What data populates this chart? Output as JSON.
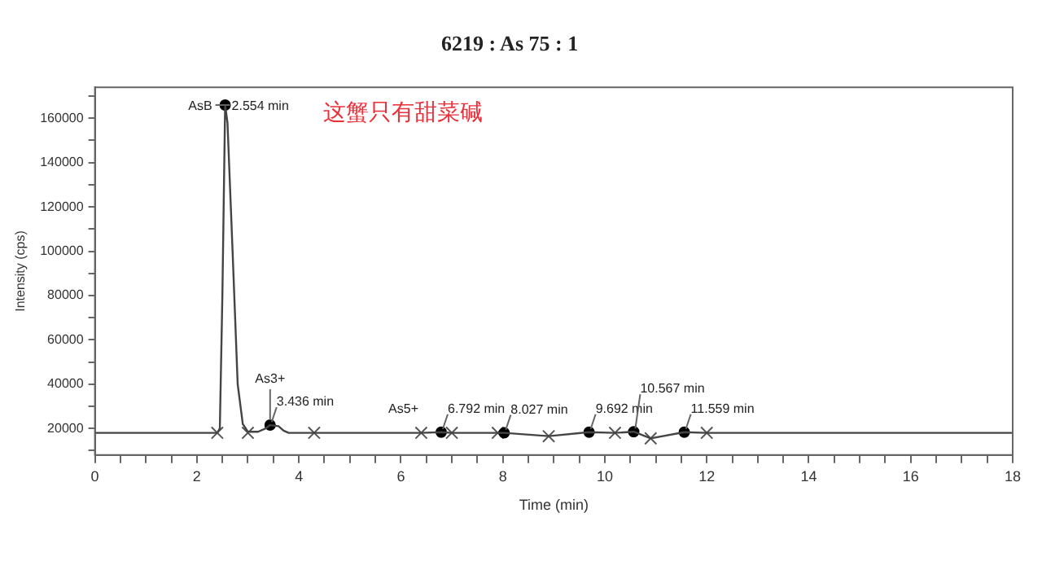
{
  "chart_data": {
    "type": "line",
    "title": "6219 : As 75 : 1",
    "xlabel": "Time (min)",
    "ylabel": "Intensity (cps)",
    "xlim": [
      0,
      18
    ],
    "ylim": [
      8000,
      174000
    ],
    "xticks": [
      0,
      {
        "value": 0.5,
        "label": null
      },
      2,
      {
        "value": 1,
        "label": null
      },
      {
        "value": 1.5,
        "label": null
      },
      {
        "value": 2.5,
        "label": null
      },
      {
        "value": 3,
        "label": null
      },
      {
        "value": 3.5,
        "label": null
      },
      4,
      {
        "value": 4.5,
        "label": null
      },
      {
        "value": 5,
        "label": null
      },
      {
        "value": 5.5,
        "label": null
      },
      6,
      {
        "value": 6.5,
        "label": null
      },
      {
        "value": 7,
        "label": null
      },
      {
        "value": 7.5,
        "label": null
      },
      8,
      {
        "value": 8.5,
        "label": null
      },
      {
        "value": 9,
        "label": null
      },
      {
        "value": 9.5,
        "label": null
      },
      10,
      {
        "value": 10.5,
        "label": null
      },
      {
        "value": 11,
        "label": null
      },
      {
        "value": 11.5,
        "label": null
      },
      12,
      {
        "value": 12.5,
        "label": null
      },
      {
        "value": 13,
        "label": null
      },
      {
        "value": 13.5,
        "label": null
      },
      14,
      {
        "value": 14.5,
        "label": null
      },
      {
        "value": 15,
        "label": null
      },
      {
        "value": 15.5,
        "label": null
      },
      16,
      {
        "value": 16.5,
        "label": null
      },
      {
        "value": 17,
        "label": null
      },
      {
        "value": 17.5,
        "label": null
      },
      18
    ],
    "yticks": [
      {
        "value": 10000,
        "label": null
      },
      20000,
      {
        "value": 30000,
        "label": null
      },
      40000,
      {
        "value": 50000,
        "label": null
      },
      60000,
      {
        "value": 70000,
        "label": null
      },
      80000,
      {
        "value": 90000,
        "label": null
      },
      100000,
      {
        "value": 110000,
        "label": null
      },
      120000,
      {
        "value": 130000,
        "label": null
      },
      140000,
      {
        "value": 150000,
        "label": null
      },
      160000,
      {
        "value": 170000,
        "label": null
      }
    ],
    "grid": false,
    "legend": false,
    "series": [
      {
        "color": "#444444",
        "marker": "none",
        "x": [
          0,
          1,
          2,
          2.4,
          2.45,
          2.5,
          2.554,
          2.6,
          2.7,
          2.8,
          2.9,
          3.0,
          3.2,
          3.35,
          3.436,
          3.6,
          3.7,
          3.8,
          4.3,
          6.4,
          6.792,
          7.0,
          8.027,
          8.9,
          9.692,
          10.2,
          10.567,
          10.9,
          11.559,
          12,
          14,
          16,
          18
        ],
        "values": [
          18000,
          18000,
          18000,
          18000,
          20000,
          80000,
          166000,
          158000,
          100000,
          40000,
          22000,
          18500,
          18500,
          20000,
          21500,
          21000,
          19000,
          18000,
          18000,
          18000,
          18300,
          18000,
          18000,
          16500,
          18300,
          18000,
          18500,
          15500,
          18300,
          18000,
          18000,
          18000,
          18000
        ]
      },
      {
        "type": "scatter",
        "color": "#000000",
        "marker": "circle",
        "x": [
          2.554,
          3.436,
          6.792,
          8.027,
          9.692,
          10.567,
          11.559
        ],
        "values": [
          166000,
          21500,
          18300,
          18000,
          18300,
          18500,
          18300
        ]
      },
      {
        "type": "scatter",
        "color": "#555555",
        "marker": "cross",
        "x": [
          2.4,
          3.0,
          4.3,
          6.4,
          7.0,
          7.9,
          8.9,
          10.2,
          10.9,
          12.0
        ],
        "values": [
          18000,
          18000,
          18000,
          18000,
          18000,
          18000,
          16500,
          18000,
          15500,
          18000
        ]
      }
    ],
    "annotations": [
      {
        "text": "AsB",
        "x": 2.554,
        "y": 166000
      },
      {
        "text": "2.554 min",
        "x": 2.554,
        "y": 166000
      },
      {
        "text": "As3+",
        "x": 3.436,
        "y": 21500
      },
      {
        "text": "3.436 min",
        "x": 3.436,
        "y": 21500
      },
      {
        "text": "As5+",
        "x": 6.792,
        "y": 18300
      },
      {
        "text": "6.792 min",
        "x": 6.792,
        "y": 18300
      },
      {
        "text": "8.027 min",
        "x": 8.027,
        "y": 18000
      },
      {
        "text": "9.692 min",
        "x": 9.692,
        "y": 18300
      },
      {
        "text": "10.567 min",
        "x": 10.567,
        "y": 18500
      },
      {
        "text": "11.559 min",
        "x": 11.559,
        "y": 18300
      },
      "这蟹只有甜菜碱"
    ]
  }
}
